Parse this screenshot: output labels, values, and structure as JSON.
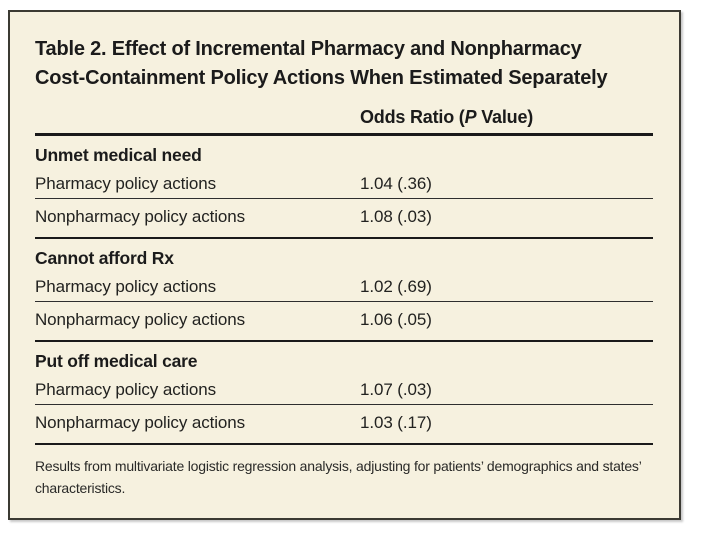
{
  "table": {
    "title_lines": [
      "Table 2. Effect of Incremental Pharmacy and Nonpharmacy",
      "Cost-Containment Policy Actions When Estimated Separately"
    ],
    "column_header": {
      "prefix": "Odds Ratio (",
      "italic": "P",
      "suffix": " Value)"
    },
    "sections": [
      {
        "header": "Unmet medical need",
        "rows": [
          {
            "label": "Pharmacy policy actions",
            "value": "1.04 (.36)"
          },
          {
            "label": "Nonpharmacy policy actions",
            "value": "1.08 (.03)"
          }
        ]
      },
      {
        "header": "Cannot afford Rx",
        "rows": [
          {
            "label": "Pharmacy policy actions",
            "value": "1.02 (.69)"
          },
          {
            "label": "Nonpharmacy policy actions",
            "value": "1.06 (.05)"
          }
        ]
      },
      {
        "header": "Put off medical care",
        "rows": [
          {
            "label": "Pharmacy policy actions",
            "value": "1.07 (.03)"
          },
          {
            "label": "Nonpharmacy policy actions",
            "value": "1.03 (.17)"
          }
        ]
      }
    ],
    "footnote": "Results from multivariate logistic regression analysis, adjusting for patients’ demographics and states’ characteristics."
  },
  "colors": {
    "page": "#ffffff",
    "card_bg": "#f6f1df",
    "card_border": "#3b3a33",
    "rule": "#1a1a1a",
    "text": "#1b1b1b"
  }
}
